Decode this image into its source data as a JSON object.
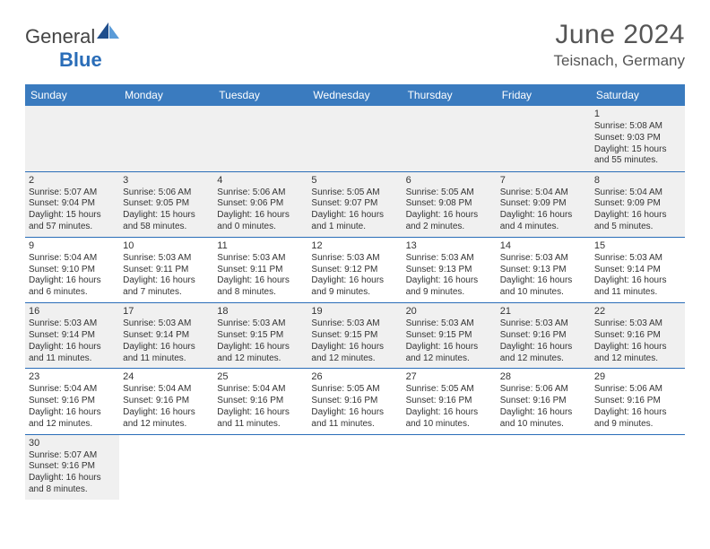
{
  "logo": {
    "general": "General",
    "blue": "Blue"
  },
  "title": {
    "monthYear": "June 2024",
    "location": "Teisnach, Germany"
  },
  "colors": {
    "headerBg": "#3a7bbf",
    "headerText": "#ffffff",
    "cellBorder": "#2a6db8",
    "shadedBg": "#f0f0f0",
    "textColor": "#333333",
    "logoBlue": "#2a6db8",
    "sailDark": "#1f4e8c",
    "sailLight": "#5a9bd8"
  },
  "dayHeaders": [
    "Sunday",
    "Monday",
    "Tuesday",
    "Wednesday",
    "Thursday",
    "Friday",
    "Saturday"
  ],
  "weeks": [
    [
      null,
      null,
      null,
      null,
      null,
      null,
      {
        "n": "1",
        "sr": "Sunrise: 5:08 AM",
        "ss": "Sunset: 9:03 PM",
        "dl": "Daylight: 15 hours and 55 minutes."
      }
    ],
    [
      {
        "n": "2",
        "sr": "Sunrise: 5:07 AM",
        "ss": "Sunset: 9:04 PM",
        "dl": "Daylight: 15 hours and 57 minutes."
      },
      {
        "n": "3",
        "sr": "Sunrise: 5:06 AM",
        "ss": "Sunset: 9:05 PM",
        "dl": "Daylight: 15 hours and 58 minutes."
      },
      {
        "n": "4",
        "sr": "Sunrise: 5:06 AM",
        "ss": "Sunset: 9:06 PM",
        "dl": "Daylight: 16 hours and 0 minutes."
      },
      {
        "n": "5",
        "sr": "Sunrise: 5:05 AM",
        "ss": "Sunset: 9:07 PM",
        "dl": "Daylight: 16 hours and 1 minute."
      },
      {
        "n": "6",
        "sr": "Sunrise: 5:05 AM",
        "ss": "Sunset: 9:08 PM",
        "dl": "Daylight: 16 hours and 2 minutes."
      },
      {
        "n": "7",
        "sr": "Sunrise: 5:04 AM",
        "ss": "Sunset: 9:09 PM",
        "dl": "Daylight: 16 hours and 4 minutes."
      },
      {
        "n": "8",
        "sr": "Sunrise: 5:04 AM",
        "ss": "Sunset: 9:09 PM",
        "dl": "Daylight: 16 hours and 5 minutes."
      }
    ],
    [
      {
        "n": "9",
        "sr": "Sunrise: 5:04 AM",
        "ss": "Sunset: 9:10 PM",
        "dl": "Daylight: 16 hours and 6 minutes."
      },
      {
        "n": "10",
        "sr": "Sunrise: 5:03 AM",
        "ss": "Sunset: 9:11 PM",
        "dl": "Daylight: 16 hours and 7 minutes."
      },
      {
        "n": "11",
        "sr": "Sunrise: 5:03 AM",
        "ss": "Sunset: 9:11 PM",
        "dl": "Daylight: 16 hours and 8 minutes."
      },
      {
        "n": "12",
        "sr": "Sunrise: 5:03 AM",
        "ss": "Sunset: 9:12 PM",
        "dl": "Daylight: 16 hours and 9 minutes."
      },
      {
        "n": "13",
        "sr": "Sunrise: 5:03 AM",
        "ss": "Sunset: 9:13 PM",
        "dl": "Daylight: 16 hours and 9 minutes."
      },
      {
        "n": "14",
        "sr": "Sunrise: 5:03 AM",
        "ss": "Sunset: 9:13 PM",
        "dl": "Daylight: 16 hours and 10 minutes."
      },
      {
        "n": "15",
        "sr": "Sunrise: 5:03 AM",
        "ss": "Sunset: 9:14 PM",
        "dl": "Daylight: 16 hours and 11 minutes."
      }
    ],
    [
      {
        "n": "16",
        "sr": "Sunrise: 5:03 AM",
        "ss": "Sunset: 9:14 PM",
        "dl": "Daylight: 16 hours and 11 minutes."
      },
      {
        "n": "17",
        "sr": "Sunrise: 5:03 AM",
        "ss": "Sunset: 9:14 PM",
        "dl": "Daylight: 16 hours and 11 minutes."
      },
      {
        "n": "18",
        "sr": "Sunrise: 5:03 AM",
        "ss": "Sunset: 9:15 PM",
        "dl": "Daylight: 16 hours and 12 minutes."
      },
      {
        "n": "19",
        "sr": "Sunrise: 5:03 AM",
        "ss": "Sunset: 9:15 PM",
        "dl": "Daylight: 16 hours and 12 minutes."
      },
      {
        "n": "20",
        "sr": "Sunrise: 5:03 AM",
        "ss": "Sunset: 9:15 PM",
        "dl": "Daylight: 16 hours and 12 minutes."
      },
      {
        "n": "21",
        "sr": "Sunrise: 5:03 AM",
        "ss": "Sunset: 9:16 PM",
        "dl": "Daylight: 16 hours and 12 minutes."
      },
      {
        "n": "22",
        "sr": "Sunrise: 5:03 AM",
        "ss": "Sunset: 9:16 PM",
        "dl": "Daylight: 16 hours and 12 minutes."
      }
    ],
    [
      {
        "n": "23",
        "sr": "Sunrise: 5:04 AM",
        "ss": "Sunset: 9:16 PM",
        "dl": "Daylight: 16 hours and 12 minutes."
      },
      {
        "n": "24",
        "sr": "Sunrise: 5:04 AM",
        "ss": "Sunset: 9:16 PM",
        "dl": "Daylight: 16 hours and 12 minutes."
      },
      {
        "n": "25",
        "sr": "Sunrise: 5:04 AM",
        "ss": "Sunset: 9:16 PM",
        "dl": "Daylight: 16 hours and 11 minutes."
      },
      {
        "n": "26",
        "sr": "Sunrise: 5:05 AM",
        "ss": "Sunset: 9:16 PM",
        "dl": "Daylight: 16 hours and 11 minutes."
      },
      {
        "n": "27",
        "sr": "Sunrise: 5:05 AM",
        "ss": "Sunset: 9:16 PM",
        "dl": "Daylight: 16 hours and 10 minutes."
      },
      {
        "n": "28",
        "sr": "Sunrise: 5:06 AM",
        "ss": "Sunset: 9:16 PM",
        "dl": "Daylight: 16 hours and 10 minutes."
      },
      {
        "n": "29",
        "sr": "Sunrise: 5:06 AM",
        "ss": "Sunset: 9:16 PM",
        "dl": "Daylight: 16 hours and 9 minutes."
      }
    ],
    [
      {
        "n": "30",
        "sr": "Sunrise: 5:07 AM",
        "ss": "Sunset: 9:16 PM",
        "dl": "Daylight: 16 hours and 8 minutes."
      },
      null,
      null,
      null,
      null,
      null,
      null
    ]
  ],
  "shadedRows": [
    0,
    1,
    3,
    5
  ]
}
